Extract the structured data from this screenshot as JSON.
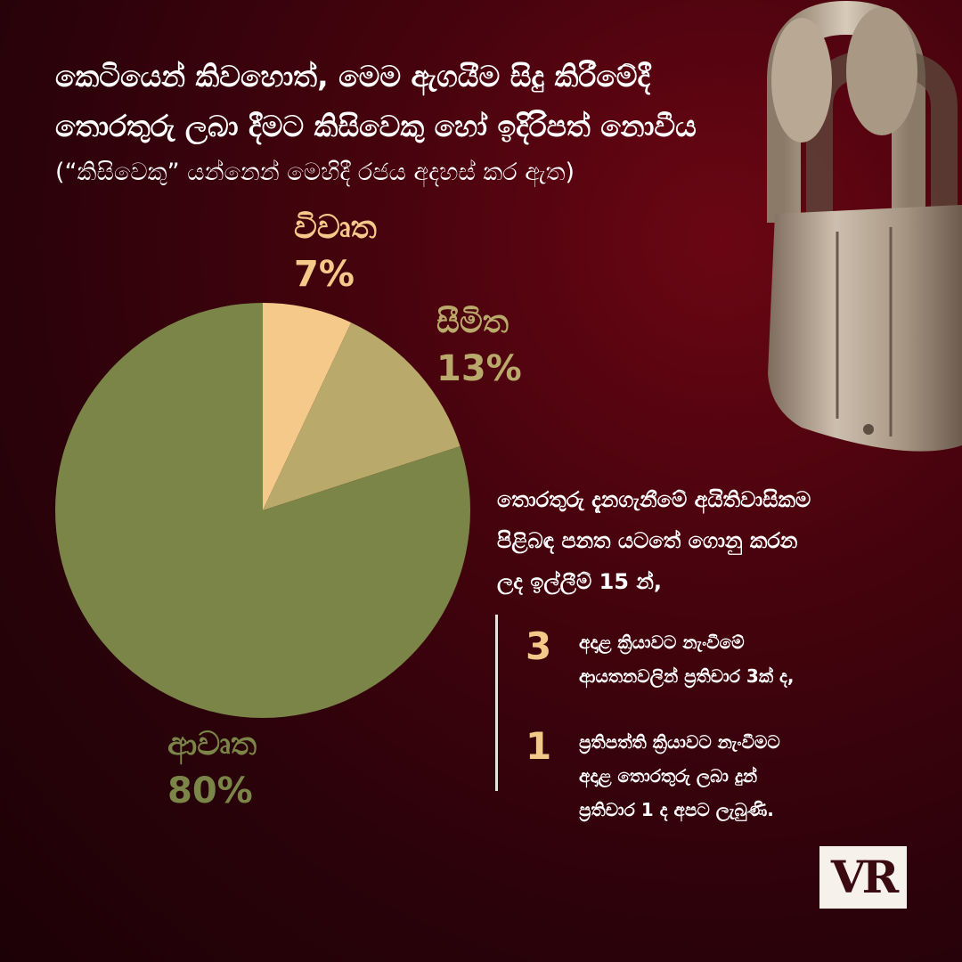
{
  "heading": {
    "lines": [
      "කෙටියෙන් කිවහොත්, මෙම ඇගයීම සිදු කිරීමේදී",
      "තොරතුරු ලබා දීමට කිසිවෙකු හෝ ඉදිරිපත් නොවීය"
    ],
    "note": "(“කිසිවෙකු” යන්නෙන් මෙහිදී රජය අදහස් කර ඇත)"
  },
  "colors": {
    "open": "#f5c98a",
    "limited": "#b9a96a",
    "closed": "#7a8547",
    "accent_number": "#f3c98a"
  },
  "chart_data": {
    "type": "pie",
    "categories": [
      "විවෘත",
      "සීමිත",
      "ආවෘත"
    ],
    "values": [
      7,
      13,
      80
    ],
    "labels": [
      "7%",
      "13%",
      "80%"
    ],
    "colors": [
      "#f5c98a",
      "#b9a96a",
      "#7a8547"
    ],
    "title": "",
    "legend": "none"
  },
  "info": {
    "intro_lines": [
      "තොරතුරු දැනගැනීමේ අයිතිවාසිකම",
      "පිළිබඳ පනත යටතේ ගොනු කරන",
      "ලද ඉල්ලීම් 15 න්,"
    ],
    "stats": [
      {
        "number": "3",
        "lines": [
          "අදාළ ක්‍රියාවට නැංවීමේ",
          "ආයතනවලින් ප්‍රතිචාර 3ක් ද,"
        ]
      },
      {
        "number": "1",
        "lines": [
          "ප්‍රතිපත්ති ක්‍රියාවට නැංවීමට",
          "අදාළ තොරතුරු ලබා දුන්",
          "ප්‍රතිචාර 1 ද අපට ලැබුණි."
        ]
      }
    ]
  },
  "logo": {
    "text": "VR"
  },
  "decor": {
    "image": "padlock-icon"
  }
}
